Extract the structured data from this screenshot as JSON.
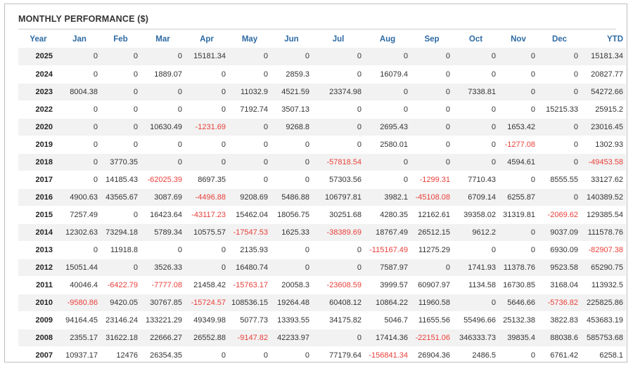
{
  "title": "MONTHLY PERFORMANCE ($)",
  "negative_color": "#e8403a",
  "header_color": "#2d6aa3",
  "columns": [
    "Year",
    "Jan",
    "Feb",
    "Mar",
    "Apr",
    "May",
    "Jun",
    "Jul",
    "Aug",
    "Sep",
    "Oct",
    "Nov",
    "Dec",
    "YTD"
  ],
  "rows": [
    [
      "2025",
      "0",
      "0",
      "0",
      "15181.34",
      "0",
      "0",
      "0",
      "0",
      "0",
      "0",
      "0",
      "0",
      "15181.34"
    ],
    [
      "2024",
      "0",
      "0",
      "1889.07",
      "0",
      "0",
      "2859.3",
      "0",
      "16079.4",
      "0",
      "0",
      "0",
      "0",
      "20827.77"
    ],
    [
      "2023",
      "8004.38",
      "0",
      "0",
      "0",
      "11032.9",
      "4521.59",
      "23374.98",
      "0",
      "0",
      "7338.81",
      "0",
      "0",
      "54272.66"
    ],
    [
      "2022",
      "0",
      "0",
      "0",
      "0",
      "7192.74",
      "3507.13",
      "0",
      "0",
      "0",
      "0",
      "0",
      "15215.33",
      "25915.2"
    ],
    [
      "2020",
      "0",
      "0",
      "10630.49",
      "-1231.69",
      "0",
      "9268.8",
      "0",
      "2695.43",
      "0",
      "0",
      "1653.42",
      "0",
      "23016.45"
    ],
    [
      "2019",
      "0",
      "0",
      "0",
      "0",
      "0",
      "0",
      "0",
      "2580.01",
      "0",
      "0",
      "-1277.08",
      "0",
      "1302.93"
    ],
    [
      "2018",
      "0",
      "3770.35",
      "0",
      "0",
      "0",
      "0",
      "-57818.54",
      "0",
      "0",
      "0",
      "4594.61",
      "0",
      "-49453.58"
    ],
    [
      "2017",
      "0",
      "14185.43",
      "-62025.39",
      "8697.35",
      "0",
      "0",
      "57303.56",
      "0",
      "-1299.31",
      "7710.43",
      "0",
      "8555.55",
      "33127.62"
    ],
    [
      "2016",
      "4900.63",
      "43565.67",
      "3087.69",
      "-4496.88",
      "9208.69",
      "5486.88",
      "106797.81",
      "3982.1",
      "-45108.08",
      "6709.14",
      "6255.87",
      "0",
      "140389.52"
    ],
    [
      "2015",
      "7257.49",
      "0",
      "16423.64",
      "-43117.23",
      "15462.04",
      "18056.75",
      "30251.68",
      "4280.35",
      "12162.61",
      "39358.02",
      "31319.81",
      "-2069.62",
      "129385.54"
    ],
    [
      "2014",
      "12302.63",
      "73294.18",
      "5789.34",
      "10575.57",
      "-17547.53",
      "1625.33",
      "-38389.69",
      "18767.49",
      "26512.15",
      "9612.2",
      "0",
      "9037.09",
      "111578.76"
    ],
    [
      "2013",
      "0",
      "11918.8",
      "0",
      "0",
      "2135.93",
      "0",
      "0",
      "-115167.49",
      "11275.29",
      "0",
      "0",
      "6930.09",
      "-82907.38"
    ],
    [
      "2012",
      "15051.44",
      "0",
      "3526.33",
      "0",
      "16480.74",
      "0",
      "0",
      "7587.97",
      "0",
      "1741.93",
      "11378.76",
      "9523.58",
      "65290.75"
    ],
    [
      "2011",
      "40046.4",
      "-6422.79",
      "-7777.08",
      "21458.42",
      "-15763.17",
      "20058.3",
      "-23608.59",
      "3999.57",
      "60907.97",
      "1134.58",
      "16730.85",
      "3168.04",
      "113932.5"
    ],
    [
      "2010",
      "-9580.86",
      "9420.05",
      "30767.85",
      "-15724.57",
      "108536.15",
      "19264.48",
      "60408.12",
      "10864.22",
      "11960.58",
      "0",
      "5646.66",
      "-5736.82",
      "225825.86"
    ],
    [
      "2009",
      "94164.45",
      "23146.24",
      "133221.29",
      "49349.98",
      "5077.73",
      "13393.55",
      "34175.82",
      "5046.7",
      "11655.56",
      "55496.66",
      "25132.38",
      "3822.83",
      "453683.19"
    ],
    [
      "2008",
      "2355.17",
      "31622.18",
      "22666.27",
      "26552.88",
      "-9147.82",
      "42233.97",
      "0",
      "17414.36",
      "-22151.06",
      "346333.73",
      "39835.4",
      "88038.6",
      "585753.68"
    ],
    [
      "2007",
      "10937.17",
      "12476",
      "26354.35",
      "0",
      "0",
      "0",
      "77179.64",
      "-156841.34",
      "26904.36",
      "2486.5",
      "0",
      "6761.42",
      "6258.1"
    ]
  ]
}
